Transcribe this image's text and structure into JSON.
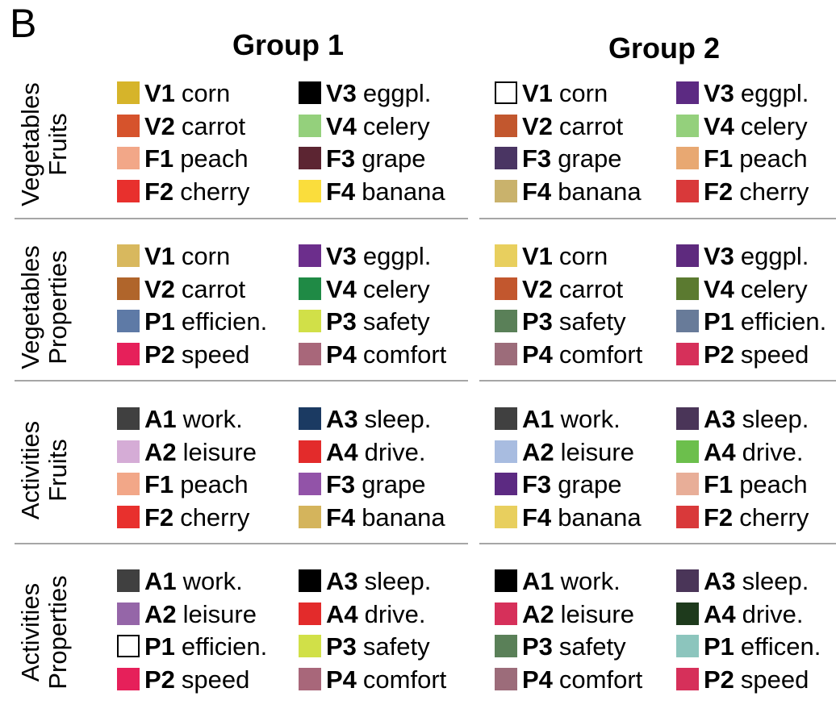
{
  "panel_label": "B",
  "groups": [
    "Group 1",
    "Group 2"
  ],
  "rows": [
    {
      "label_lines": [
        "Vegetables",
        "Fruits"
      ],
      "group1": [
        {
          "code": "V1",
          "name": "corn",
          "color": "#d6b42a"
        },
        {
          "code": "V3",
          "name": "eggpl.",
          "color": "#000000"
        },
        {
          "code": "V2",
          "name": "carrot",
          "color": "#d6532c"
        },
        {
          "code": "V4",
          "name": "celery",
          "color": "#94d07c"
        },
        {
          "code": "F1",
          "name": "peach",
          "color": "#f2a788"
        },
        {
          "code": "F3",
          "name": "grape",
          "color": "#5c2532"
        },
        {
          "code": "F2",
          "name": "cherry",
          "color": "#e8302d"
        },
        {
          "code": "F4",
          "name": "banana",
          "color": "#fadd3c"
        }
      ],
      "group2": [
        {
          "code": "V1",
          "name": "corn",
          "color": "#ffffff",
          "outline": true
        },
        {
          "code": "V3",
          "name": "eggpl.",
          "color": "#5c2a82"
        },
        {
          "code": "V2",
          "name": "carrot",
          "color": "#c2572e"
        },
        {
          "code": "V4",
          "name": "celery",
          "color": "#94d07c"
        },
        {
          "code": "F3",
          "name": "grape",
          "color": "#4a3563"
        },
        {
          "code": "F1",
          "name": "peach",
          "color": "#e8a872"
        },
        {
          "code": "F4",
          "name": "banana",
          "color": "#c9b26c"
        },
        {
          "code": "F2",
          "name": "cherry",
          "color": "#d9393a"
        }
      ]
    },
    {
      "label_lines": [
        "Vegetables",
        "Properties"
      ],
      "group1": [
        {
          "code": "V1",
          "name": "corn",
          "color": "#d8b85e"
        },
        {
          "code": "V3",
          "name": "eggpl.",
          "color": "#6c2e8c"
        },
        {
          "code": "V2",
          "name": "carrot",
          "color": "#b0652b"
        },
        {
          "code": "V4",
          "name": "celery",
          "color": "#1f8a45"
        },
        {
          "code": "P1",
          "name": "efficien.",
          "color": "#5e7aa6"
        },
        {
          "code": "P3",
          "name": "safety",
          "color": "#d1e048"
        },
        {
          "code": "P2",
          "name": "speed",
          "color": "#e6205a"
        },
        {
          "code": "P4",
          "name": "comfort",
          "color": "#a8677a"
        }
      ],
      "group2": [
        {
          "code": "V1",
          "name": "corn",
          "color": "#e8cf5e"
        },
        {
          "code": "V3",
          "name": "eggpl.",
          "color": "#5e2a7e"
        },
        {
          "code": "V2",
          "name": "carrot",
          "color": "#c2572e"
        },
        {
          "code": "V4",
          "name": "celery",
          "color": "#5b7a30"
        },
        {
          "code": "P3",
          "name": "safety",
          "color": "#5a8058"
        },
        {
          "code": "P1",
          "name": "efficien.",
          "color": "#687b99"
        },
        {
          "code": "P4",
          "name": "comfort",
          "color": "#9c6c7a"
        },
        {
          "code": "P2",
          "name": "speed",
          "color": "#d6305a"
        }
      ]
    },
    {
      "label_lines": [
        "Activities",
        "Fruits"
      ],
      "group1": [
        {
          "code": "A1",
          "name": "work.",
          "color": "#404040"
        },
        {
          "code": "A3",
          "name": "sleep.",
          "color": "#1b3a62"
        },
        {
          "code": "A2",
          "name": "leisure",
          "color": "#d5acd6"
        },
        {
          "code": "A4",
          "name": "drive.",
          "color": "#e32b2b"
        },
        {
          "code": "F1",
          "name": "peach",
          "color": "#f2a788"
        },
        {
          "code": "F3",
          "name": "grape",
          "color": "#9253a8"
        },
        {
          "code": "F2",
          "name": "cherry",
          "color": "#e8302d"
        },
        {
          "code": "F4",
          "name": "banana",
          "color": "#d4b45c"
        }
      ],
      "group2": [
        {
          "code": "A1",
          "name": "work.",
          "color": "#404040"
        },
        {
          "code": "A3",
          "name": "sleep.",
          "color": "#4a3558"
        },
        {
          "code": "A2",
          "name": "leisure",
          "color": "#a8bce0"
        },
        {
          "code": "A4",
          "name": "drive.",
          "color": "#6cbf4c"
        },
        {
          "code": "F3",
          "name": "grape",
          "color": "#5c2a82"
        },
        {
          "code": "F1",
          "name": "peach",
          "color": "#e8ae98"
        },
        {
          "code": "F4",
          "name": "banana",
          "color": "#e8cf5e"
        },
        {
          "code": "F2",
          "name": "cherry",
          "color": "#d9393a"
        }
      ]
    },
    {
      "label_lines": [
        "Activities",
        "Properties"
      ],
      "group1": [
        {
          "code": "A1",
          "name": "work.",
          "color": "#404040"
        },
        {
          "code": "A3",
          "name": "sleep.",
          "color": "#000000"
        },
        {
          "code": "A2",
          "name": "leisure",
          "color": "#9566a8"
        },
        {
          "code": "A4",
          "name": "drive.",
          "color": "#e32b2b"
        },
        {
          "code": "P1",
          "name": "efficien.",
          "color": "#ffffff",
          "outline": true
        },
        {
          "code": "P3",
          "name": "safety",
          "color": "#d1e048"
        },
        {
          "code": "P2",
          "name": "speed",
          "color": "#e6205a"
        },
        {
          "code": "P4",
          "name": "comfort",
          "color": "#a8677a"
        }
      ],
      "group2": [
        {
          "code": "A1",
          "name": "work.",
          "color": "#000000"
        },
        {
          "code": "A3",
          "name": "sleep.",
          "color": "#4a3558"
        },
        {
          "code": "A2",
          "name": "leisure",
          "color": "#d6305a"
        },
        {
          "code": "A4",
          "name": "drive.",
          "color": "#1e3a1c"
        },
        {
          "code": "P3",
          "name": "safety",
          "color": "#5a8058"
        },
        {
          "code": "P1",
          "name": "efficen.",
          "color": "#8cc5bd"
        },
        {
          "code": "P4",
          "name": "comfort",
          "color": "#9c6c7a"
        },
        {
          "code": "P2",
          "name": "speed",
          "color": "#d6305a"
        }
      ]
    }
  ]
}
